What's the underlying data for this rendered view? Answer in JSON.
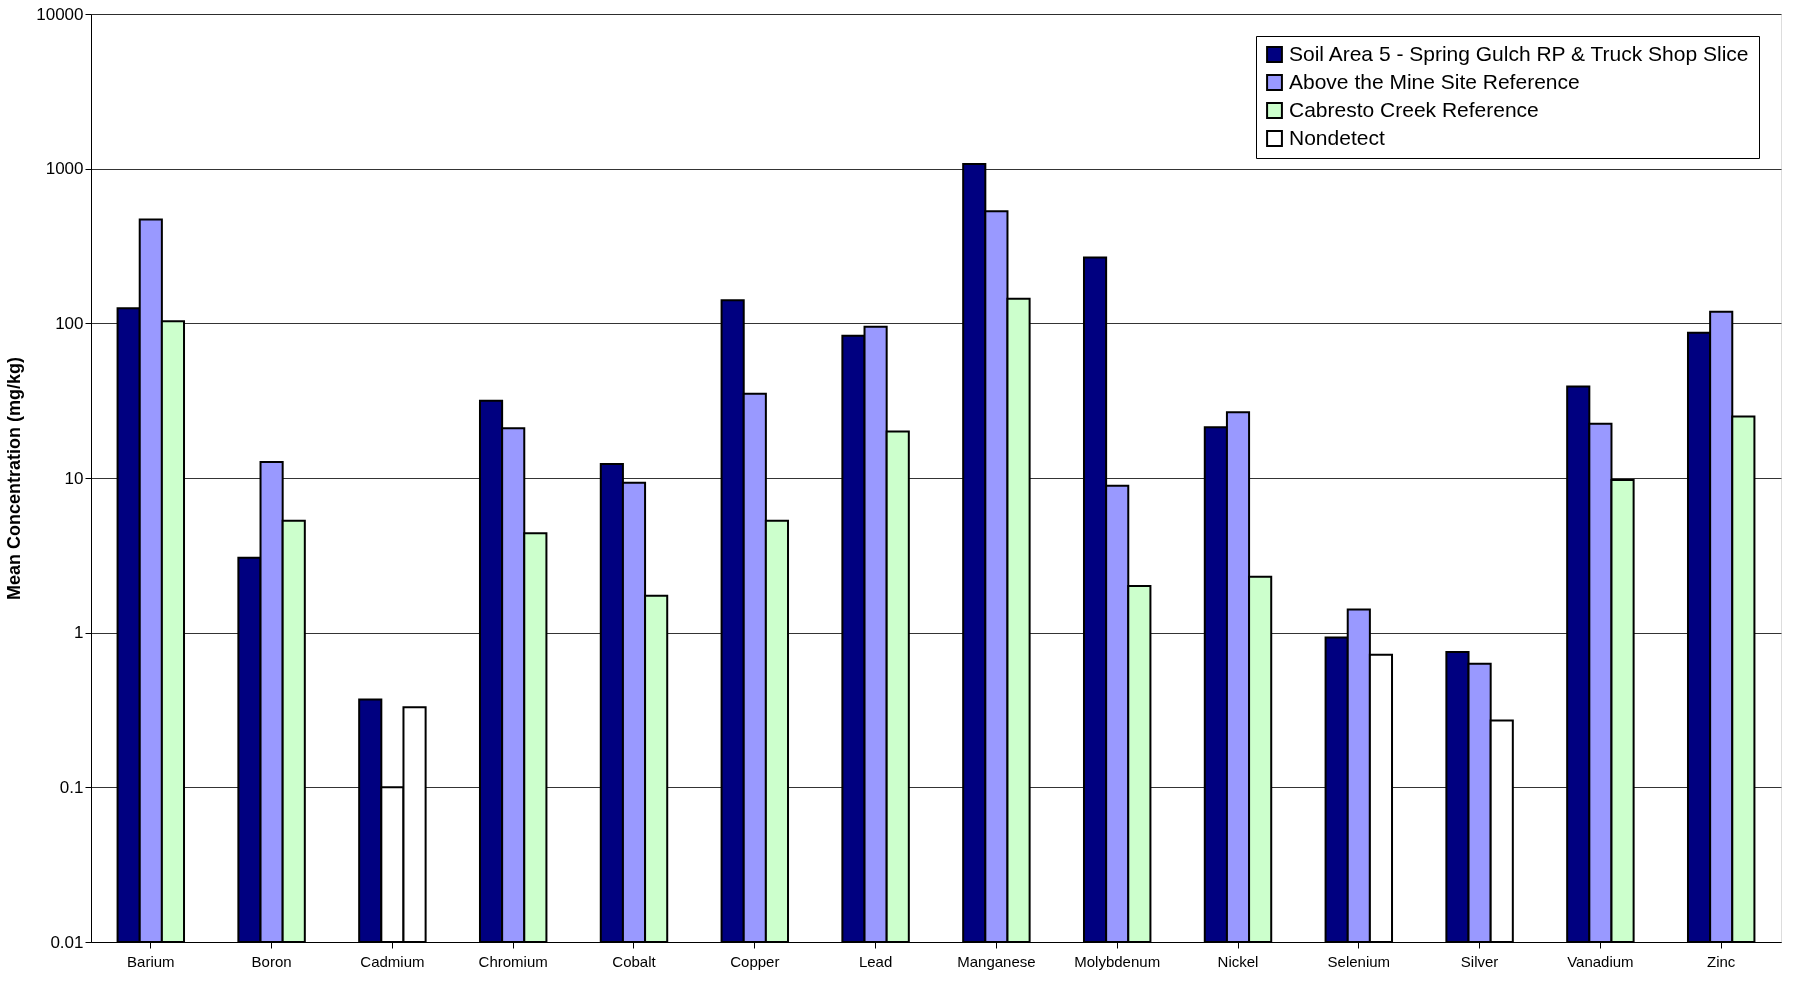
{
  "chart_data": {
    "type": "bar",
    "ylabel": "Mean Concentration (mg/kg)",
    "categories": [
      "Barium",
      "Boron",
      "Cadmium",
      "Chromium",
      "Cobalt",
      "Copper",
      "Lead",
      "Manganese",
      "Molybdenum",
      "Nickel",
      "Selenium",
      "Silver",
      "Vanadium",
      "Zinc"
    ],
    "series": [
      {
        "name": "Soil Area 5 - Spring Gulch RP & Truck Shop Slice",
        "color": "#000080",
        "values": [
          125,
          3.05,
          0.37,
          31.6,
          12.3,
          141,
          83,
          1070,
          266,
          21.3,
          0.93,
          0.75,
          39,
          87
        ]
      },
      {
        "name": "Above the Mine Site Reference",
        "color": "#9999ff",
        "values": [
          470,
          12.7,
          0.1,
          21,
          9.3,
          35,
          95,
          530,
          8.9,
          26.6,
          1.41,
          0.63,
          22.4,
          119
        ],
        "colors": [
          "#9999ff",
          "#9999ff",
          "#ffffff",
          "#9999ff",
          "#9999ff",
          "#9999ff",
          "#9999ff",
          "#9999ff",
          "#9999ff",
          "#9999ff",
          "#9999ff",
          "#9999ff",
          "#9999ff",
          "#9999ff"
        ]
      },
      {
        "name": "Cabresto Creek Reference",
        "color": "#ccffcc",
        "values": [
          103,
          5.3,
          0.33,
          4.4,
          1.73,
          5.3,
          20,
          144,
          2.0,
          2.3,
          0.72,
          0.27,
          9.7,
          25
        ],
        "colors": [
          "#ccffcc",
          "#ccffcc",
          "#ffffff",
          "#ccffcc",
          "#ccffcc",
          "#ccffcc",
          "#ccffcc",
          "#ccffcc",
          "#ccffcc",
          "#ccffcc",
          "#ffffff",
          "#ffffff",
          "#ccffcc",
          "#ccffcc"
        ]
      },
      {
        "name": "Nondetect",
        "color": "#ffffff",
        "values": [
          null,
          null,
          null,
          null,
          null,
          null,
          null,
          null,
          null,
          null,
          null,
          null,
          null,
          null
        ]
      }
    ],
    "log": "y",
    "ylim": [
      0.01,
      10000
    ],
    "yticks": [
      0.01,
      0.1,
      1,
      10,
      100,
      1000,
      10000
    ],
    "grid": "y",
    "legend": "top right"
  }
}
